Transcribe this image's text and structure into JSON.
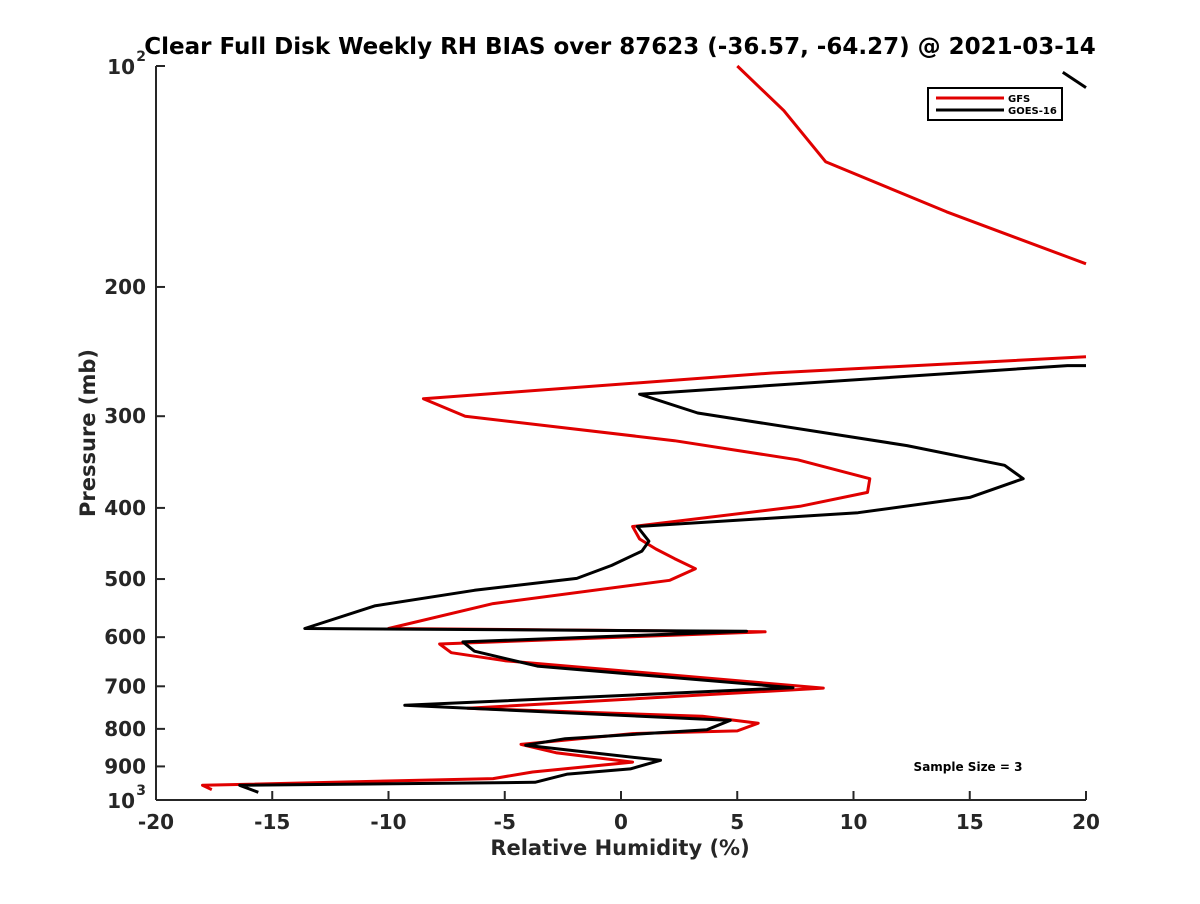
{
  "chart_data": {
    "type": "line",
    "title": "Clear Full Disk Weekly RH BIAS over 87623 (-36.57, -64.27) @ 2021-03-14",
    "xlabel": "Relative Humidity (%)",
    "ylabel": "Pressure (mb)",
    "xlim": [
      -20,
      20
    ],
    "ylim": [
      100,
      1000
    ],
    "y_scale": "log",
    "y_reversed": true,
    "grid": false,
    "legend_position": "top-right",
    "annotation": "Sample Size = 3",
    "x_ticks": [
      "-20",
      "-15",
      "-10",
      "-5",
      "0",
      "5",
      "10",
      "15",
      "20"
    ],
    "y_ticks": [
      {
        "value": 100,
        "base": "10",
        "exp": "2"
      },
      {
        "value": 200,
        "base": "200",
        "exp": ""
      },
      {
        "value": 300,
        "base": "300",
        "exp": ""
      },
      {
        "value": 400,
        "base": "400",
        "exp": ""
      },
      {
        "value": 500,
        "base": "500",
        "exp": ""
      },
      {
        "value": 600,
        "base": "600",
        "exp": ""
      },
      {
        "value": 700,
        "base": "700",
        "exp": ""
      },
      {
        "value": 800,
        "base": "800",
        "exp": ""
      },
      {
        "value": 900,
        "base": "900",
        "exp": ""
      },
      {
        "value": 1000,
        "base": "10",
        "exp": "3"
      }
    ],
    "series": [
      {
        "name": "GFS",
        "color": "#e00000",
        "points": [
          [
            5.0,
            100
          ],
          [
            7.0,
            115
          ],
          [
            8.8,
            135
          ],
          [
            14.0,
            158
          ],
          [
            19.2,
            182
          ],
          [
            20,
            186
          ],
          [
            null,
            null
          ],
          [
            20,
            249
          ],
          [
            6.5,
            262
          ],
          [
            -8.5,
            284
          ],
          [
            -6.7,
            300
          ],
          [
            2.3,
            324
          ],
          [
            7.6,
            344
          ],
          [
            10.7,
            365
          ],
          [
            10.6,
            381
          ],
          [
            7.7,
            398
          ],
          [
            0.5,
            424
          ],
          [
            0.8,
            441
          ],
          [
            1.5,
            455
          ],
          [
            2.3,
            469
          ],
          [
            3.2,
            484
          ],
          [
            2.1,
            502
          ],
          [
            -5.5,
            540
          ],
          [
            -10.0,
            584
          ],
          [
            6.2,
            590
          ],
          [
            -7.8,
            613
          ],
          [
            -7.3,
            630
          ],
          [
            -5.0,
            646
          ],
          [
            8.7,
            704
          ],
          [
            -6.6,
            750
          ],
          [
            3.5,
            769
          ],
          [
            5.9,
            786
          ],
          [
            5.0,
            805
          ],
          [
            0.5,
            812
          ],
          [
            -4.3,
            840
          ],
          [
            -2.8,
            862
          ],
          [
            0.5,
            888
          ],
          [
            -3.8,
            916
          ],
          [
            -5.5,
            935
          ],
          [
            -18.0,
            955
          ],
          [
            -17.6,
            968
          ]
        ]
      },
      {
        "name": "GOES-16",
        "color": "#000000",
        "points": [
          [
            19.0,
            102
          ],
          [
            20,
            107
          ],
          [
            null,
            null
          ],
          [
            20,
            256
          ],
          [
            19.2,
            256
          ],
          [
            0.8,
            280
          ],
          [
            3.3,
            297
          ],
          [
            12.3,
            329
          ],
          [
            16.5,
            350
          ],
          [
            17.3,
            365
          ],
          [
            15.0,
            387
          ],
          [
            10.2,
            406
          ],
          [
            0.7,
            424
          ],
          [
            1.2,
            444
          ],
          [
            0.9,
            458
          ],
          [
            -0.4,
            479
          ],
          [
            -1.9,
            499
          ],
          [
            -6.3,
            518
          ],
          [
            -10.6,
            544
          ],
          [
            -13.6,
            584
          ],
          [
            5.4,
            589
          ],
          [
            -6.8,
            609
          ],
          [
            -6.3,
            627
          ],
          [
            -3.6,
            657
          ],
          [
            7.4,
            703
          ],
          [
            -9.3,
            743
          ],
          [
            4.7,
            779
          ],
          [
            3.7,
            802
          ],
          [
            -2.4,
            825
          ],
          [
            -4.1,
            842
          ],
          [
            -2.0,
            857
          ],
          [
            1.7,
            883
          ],
          [
            0.4,
            907
          ],
          [
            -2.3,
            922
          ],
          [
            -3.7,
            946
          ],
          [
            -16.4,
            955
          ],
          [
            -15.6,
            976
          ]
        ]
      }
    ]
  }
}
